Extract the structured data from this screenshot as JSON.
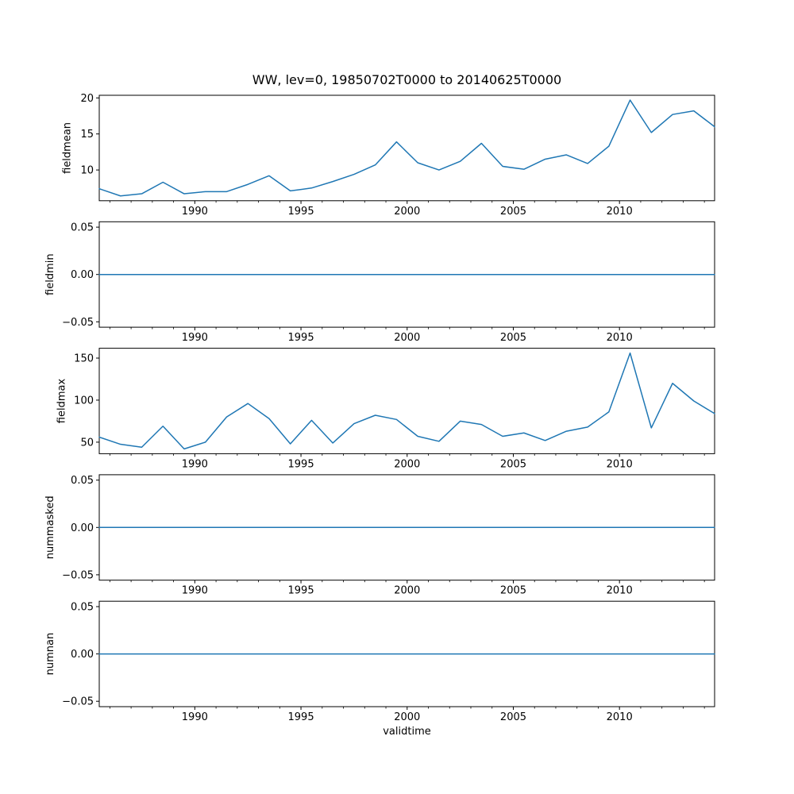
{
  "figure": {
    "title": "WW, lev=0, 19850702T0000 to 20140625T0000",
    "xlabel": "validtime",
    "line_color": "#1f77b4",
    "background_color": "#ffffff",
    "text_color": "#000000"
  },
  "x_axis": {
    "xlim": [
      1985.5,
      2014.48
    ],
    "x": [
      1985.5,
      1986.5,
      1987.5,
      1988.5,
      1989.5,
      1990.5,
      1991.5,
      1992.5,
      1993.5,
      1994.5,
      1995.5,
      1996.5,
      1997.5,
      1998.5,
      1999.5,
      2000.5,
      2001.5,
      2002.5,
      2003.5,
      2004.5,
      2005.5,
      2006.5,
      2007.5,
      2008.5,
      2009.5,
      2010.5,
      2011.5,
      2012.5,
      2013.5,
      2014.48
    ],
    "major_ticks": [
      1990,
      1995,
      2000,
      2005,
      2010
    ],
    "major_labels": [
      "1990",
      "1995",
      "2000",
      "2005",
      "2010"
    ],
    "minor_ticks": [
      1986,
      1987,
      1988,
      1989,
      1991,
      1992,
      1993,
      1994,
      1996,
      1997,
      1998,
      1999,
      2001,
      2002,
      2003,
      2004,
      2006,
      2007,
      2008,
      2009,
      2011,
      2012,
      2013,
      2014
    ]
  },
  "chart_data": [
    {
      "type": "line",
      "title": "WW, lev=0, 19850702T0000 to 20140625T0000",
      "xlabel": "",
      "ylabel": "fieldmean",
      "ylim": [
        5.735,
        20.365
      ],
      "yticks": [
        10,
        15,
        20
      ],
      "ytick_labels": [
        "10",
        "15",
        "20"
      ],
      "grid": false,
      "legend": "none",
      "values": [
        7.4,
        6.4,
        6.7,
        8.3,
        6.7,
        7.0,
        7.0,
        8.0,
        9.2,
        7.1,
        7.5,
        8.4,
        9.4,
        10.7,
        13.9,
        11.0,
        10.0,
        11.2,
        13.7,
        10.5,
        10.1,
        11.5,
        12.1,
        10.9,
        13.3,
        19.7,
        15.2,
        17.7,
        18.2,
        16.0
      ]
    },
    {
      "type": "line",
      "title": "",
      "xlabel": "",
      "ylabel": "fieldmin",
      "ylim": [
        -0.0557,
        0.0557
      ],
      "yticks": [
        -0.05,
        0.0,
        0.05
      ],
      "ytick_labels": [
        "−0.05",
        "0.00",
        "0.05"
      ],
      "grid": false,
      "legend": "none",
      "values": [
        0,
        0,
        0,
        0,
        0,
        0,
        0,
        0,
        0,
        0,
        0,
        0,
        0,
        0,
        0,
        0,
        0,
        0,
        0,
        0,
        0,
        0,
        0,
        0,
        0,
        0,
        0,
        0,
        0,
        0
      ]
    },
    {
      "type": "line",
      "title": "",
      "xlabel": "",
      "ylabel": "fieldmax",
      "ylim": [
        36.3,
        161.7
      ],
      "yticks": [
        50,
        100,
        150
      ],
      "ytick_labels": [
        "50",
        "100",
        "150"
      ],
      "grid": false,
      "legend": "none",
      "values": [
        56,
        47.5,
        44,
        69,
        42,
        50,
        80,
        96,
        78,
        48,
        76,
        49,
        72,
        82,
        77,
        57,
        51,
        75,
        71,
        57,
        61,
        52,
        63,
        68,
        86,
        156,
        67,
        120,
        99,
        84
      ]
    },
    {
      "type": "line",
      "title": "",
      "xlabel": "",
      "ylabel": "nummasked",
      "ylim": [
        -0.0557,
        0.0557
      ],
      "yticks": [
        -0.05,
        0.0,
        0.05
      ],
      "ytick_labels": [
        "−0.05",
        "0.00",
        "0.05"
      ],
      "grid": false,
      "legend": "none",
      "values": [
        0,
        0,
        0,
        0,
        0,
        0,
        0,
        0,
        0,
        0,
        0,
        0,
        0,
        0,
        0,
        0,
        0,
        0,
        0,
        0,
        0,
        0,
        0,
        0,
        0,
        0,
        0,
        0,
        0,
        0
      ]
    },
    {
      "type": "line",
      "title": "",
      "xlabel": "validtime",
      "ylabel": "numnan",
      "ylim": [
        -0.0557,
        0.0557
      ],
      "yticks": [
        -0.05,
        0.0,
        0.05
      ],
      "ytick_labels": [
        "−0.05",
        "0.00",
        "0.05"
      ],
      "grid": false,
      "legend": "none",
      "values": [
        0,
        0,
        0,
        0,
        0,
        0,
        0,
        0,
        0,
        0,
        0,
        0,
        0,
        0,
        0,
        0,
        0,
        0,
        0,
        0,
        0,
        0,
        0,
        0,
        0,
        0,
        0,
        0,
        0,
        0
      ]
    }
  ]
}
